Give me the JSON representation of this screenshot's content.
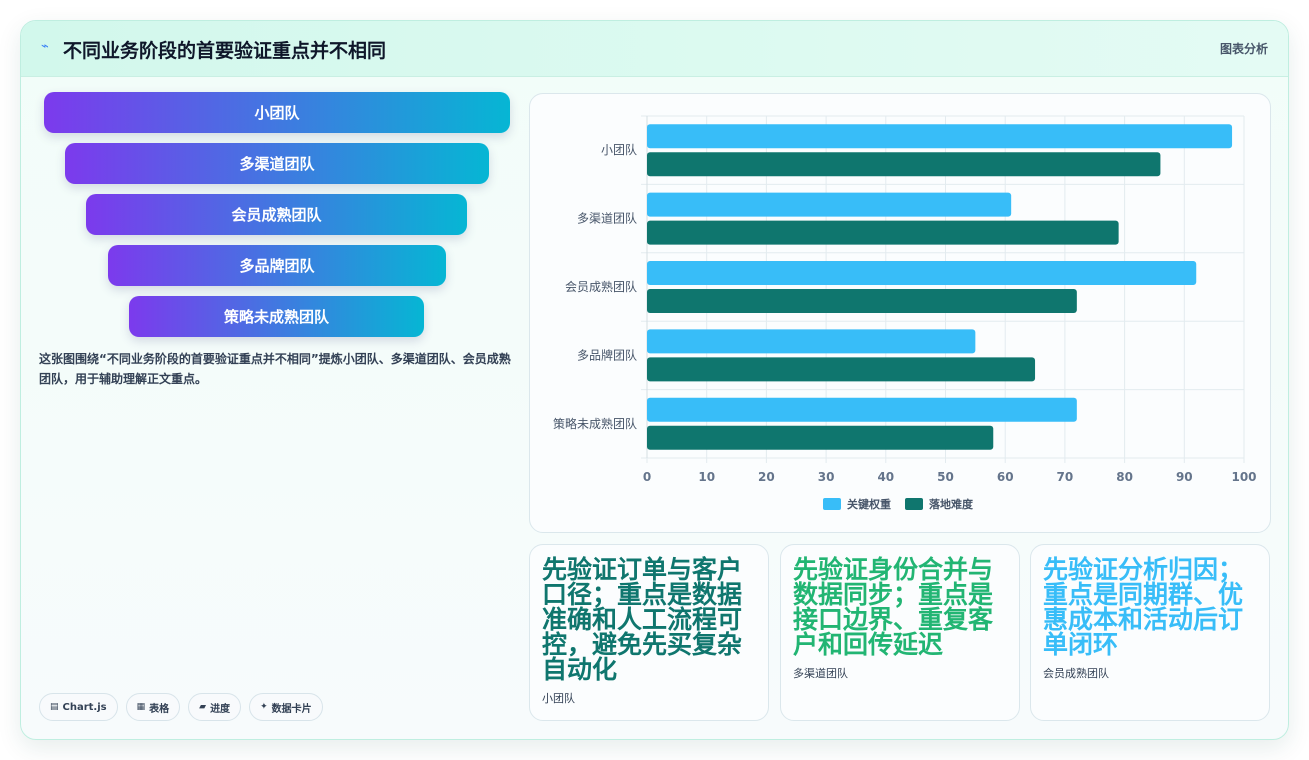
{
  "header": {
    "title": "不同业务阶段的首要验证重点并不相同",
    "tag": "图表分析",
    "icon": "sparkline-icon"
  },
  "funnel": [
    "小团队",
    "多渠道团队",
    "会员成熟团队",
    "多品牌团队",
    "策略未成熟团队"
  ],
  "description": "这张图围绕“不同业务阶段的首要验证重点并不相同”提炼小团队、多渠道团队、会员成熟团队，用于辅助理解正文重点。",
  "pills": [
    {
      "icon": "chart-icon",
      "label": "Chart.js"
    },
    {
      "icon": "table-icon",
      "label": "表格"
    },
    {
      "icon": "progress-icon",
      "label": "进度"
    },
    {
      "icon": "sparkle-icon",
      "label": "数据卡片"
    }
  ],
  "chart_data": {
    "type": "bar",
    "orientation": "horizontal",
    "categories": [
      "小团队",
      "多渠道团队",
      "会员成熟团队",
      "多品牌团队",
      "策略未成熟团队"
    ],
    "series": [
      {
        "name": "关键权重",
        "color": "#38bdf8",
        "values": [
          98,
          61,
          92,
          55,
          72
        ]
      },
      {
        "name": "落地难度",
        "color": "#0f766e",
        "values": [
          86,
          79,
          72,
          65,
          58
        ]
      }
    ],
    "xlim": [
      0,
      100
    ],
    "xticks": [
      0,
      10,
      20,
      30,
      40,
      50,
      60,
      70,
      80,
      90,
      100
    ],
    "grid": true,
    "legend": "bottom"
  },
  "cards": [
    {
      "text": "先验证订单与客户口径；重点是数据准确和人工流程可控，避免先买复杂自动化",
      "sub": "小团队",
      "color": "#0f766e"
    },
    {
      "text": "先验证身份合并与数据同步；重点是接口边界、重复客户和回传延迟",
      "sub": "多渠道团队",
      "color": "#22b573"
    },
    {
      "text": "先验证分析归因；重点是同期群、优惠成本和活动后订单闭环",
      "sub": "会员成熟团队",
      "color": "#38bdf8"
    }
  ]
}
